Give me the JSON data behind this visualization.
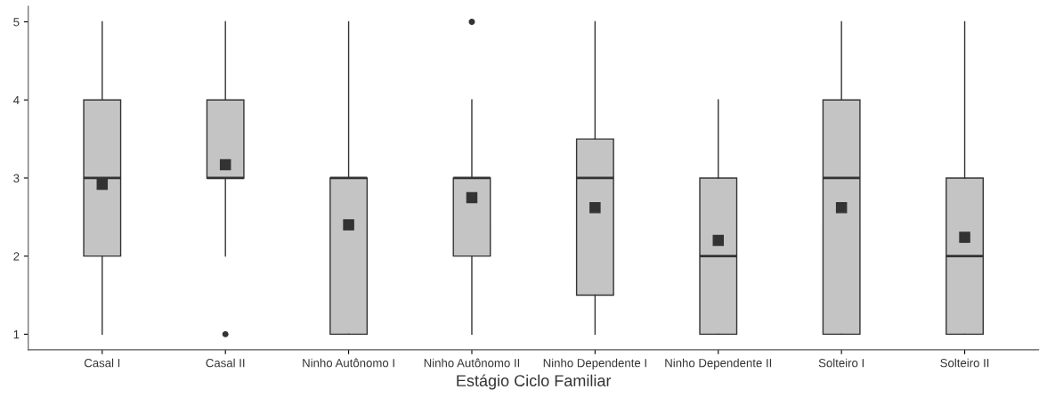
{
  "chart_data": {
    "type": "box",
    "xlabel": "Estágio Ciclo Familiar",
    "categories": [
      "Casal I",
      "Casal II",
      "Ninho Autônomo I",
      "Ninho Autônomo II",
      "Ninho Dependente I",
      "Ninho Dependente II",
      "Solteiro I",
      "Solteiro II"
    ],
    "color": "#c4c4c4",
    "boxes": [
      {
        "low": 1,
        "q1": 2,
        "median": 3,
        "q3": 4,
        "high": 5,
        "mean": 2.92
      },
      {
        "low": 2,
        "q1": 3,
        "median": 3,
        "q3": 4,
        "high": 5,
        "mean": 3.17,
        "outliers": [
          1
        ]
      },
      {
        "low": 1,
        "q1": 1,
        "median": 3,
        "q3": 3,
        "high": 5,
        "mean": 2.4
      },
      {
        "low": 1,
        "q1": 2,
        "median": 3,
        "q3": 3,
        "high": 4,
        "mean": 2.75,
        "outliers": [
          5
        ]
      },
      {
        "low": 1,
        "q1": 1.5,
        "median": 3,
        "q3": 3.5,
        "high": 5,
        "mean": 2.62
      },
      {
        "low": 1,
        "q1": 1,
        "median": 2,
        "q3": 3,
        "high": 4,
        "mean": 2.2
      },
      {
        "low": 1,
        "q1": 1,
        "median": 3,
        "q3": 4,
        "high": 5,
        "mean": 2.62
      },
      {
        "low": 1,
        "q1": 1,
        "median": 2,
        "q3": 3,
        "high": 5,
        "mean": 2.24
      }
    ],
    "ylim": [
      0.8,
      5.2
    ],
    "yticks": [
      1,
      2,
      3,
      4,
      5
    ],
    "grid": false,
    "legend": false,
    "marker": "square"
  }
}
